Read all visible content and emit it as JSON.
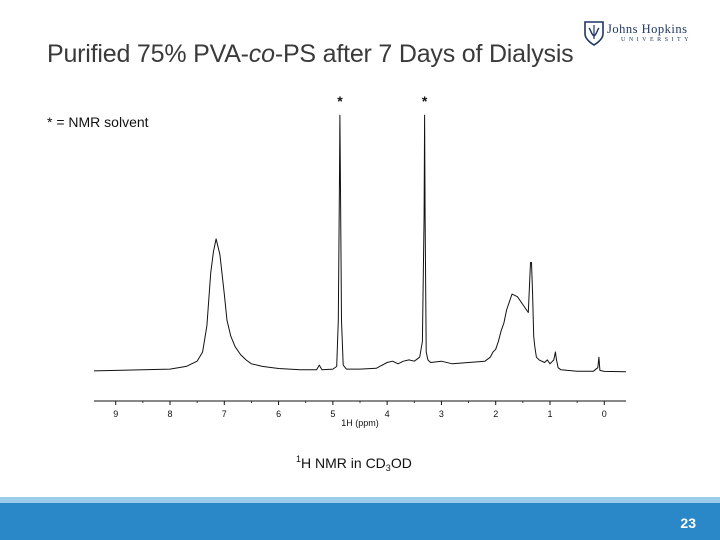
{
  "slide": {
    "title_pre": "Purified 75% PVA-",
    "title_italic": "co",
    "title_post": "-PS after 7 Days of Dialysis",
    "note": "* = NMR solvent",
    "caption_sup": "1",
    "caption_main": "H NMR in CD",
    "caption_sub": "3",
    "caption_end": "OD",
    "page_number": "23"
  },
  "logo": {
    "name": "Johns Hopkins",
    "sub": "UNIVERSITY"
  },
  "colors": {
    "accent": "#2a87c8",
    "accent_light": "#9ccbeb",
    "logo": "#1f3764"
  },
  "chart_data": {
    "type": "line",
    "title": "",
    "xlabel": "1H (ppm)",
    "ylabel": "",
    "xlim": [
      9.4,
      -0.4
    ],
    "ylim": [
      0,
      100
    ],
    "x_ticks": [
      "9",
      "8",
      "7",
      "6",
      "5",
      "4",
      "3",
      "2",
      "1",
      "0"
    ],
    "annotations": [
      {
        "x": 4.87,
        "y": 100,
        "text": "*"
      },
      {
        "x": 3.31,
        "y": 100,
        "text": "*"
      }
    ],
    "series": [
      {
        "name": "spectrum",
        "x": [
          9.4,
          8.0,
          7.7,
          7.5,
          7.4,
          7.32,
          7.25,
          7.2,
          7.15,
          7.08,
          7.0,
          6.95,
          6.88,
          6.8,
          6.7,
          6.6,
          6.5,
          6.3,
          6.0,
          5.6,
          5.3,
          5.25,
          5.2,
          5.0,
          4.93,
          4.9,
          4.88,
          4.87,
          4.86,
          4.84,
          4.81,
          4.75,
          4.5,
          4.2,
          4.0,
          3.9,
          3.8,
          3.7,
          3.6,
          3.5,
          3.4,
          3.35,
          3.32,
          3.31,
          3.3,
          3.28,
          3.25,
          3.2,
          3.0,
          2.8,
          2.5,
          2.2,
          2.1,
          2.05,
          2.0,
          1.95,
          1.9,
          1.85,
          1.8,
          1.7,
          1.6,
          1.5,
          1.4,
          1.36,
          1.34,
          1.32,
          1.3,
          1.28,
          1.25,
          1.2,
          1.1,
          1.05,
          1.0,
          0.93,
          0.9,
          0.88,
          0.85,
          0.8,
          0.5,
          0.2,
          0.12,
          0.1,
          0.08,
          0.0,
          -0.4
        ],
        "values": [
          0.8,
          1.5,
          2.5,
          4.5,
          8,
          18,
          38,
          46,
          51,
          45,
          30,
          20,
          14,
          10,
          7,
          5,
          3.5,
          2.5,
          1.7,
          1.2,
          1.2,
          3,
          1.2,
          1.5,
          2.5,
          20,
          70,
          98,
          70,
          20,
          3,
          1.5,
          1.5,
          1.8,
          4,
          4.5,
          3.5,
          4.5,
          5,
          4.5,
          6,
          12,
          60,
          98,
          60,
          8,
          5,
          4,
          4.5,
          3.5,
          4,
          4.5,
          6,
          8,
          9,
          12,
          16,
          19,
          24,
          30,
          29,
          26,
          23,
          42,
          42,
          30,
          14,
          10,
          6,
          5,
          4,
          5,
          3.5,
          5,
          8,
          5,
          2,
          1.2,
          0.7,
          0.7,
          2,
          6,
          1,
          0.6,
          0.5
        ]
      }
    ]
  }
}
